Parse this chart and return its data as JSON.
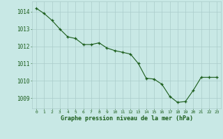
{
  "x": [
    0,
    1,
    2,
    3,
    4,
    5,
    6,
    7,
    8,
    9,
    10,
    11,
    12,
    13,
    14,
    15,
    16,
    17,
    18,
    19,
    20,
    21,
    22,
    23
  ],
  "y": [
    1014.2,
    1013.9,
    1013.5,
    1013.0,
    1012.55,
    1012.45,
    1012.1,
    1012.1,
    1012.2,
    1011.9,
    1011.75,
    1011.65,
    1011.55,
    1011.0,
    1010.15,
    1010.1,
    1009.8,
    1009.1,
    1008.75,
    1008.8,
    1009.45,
    1010.2,
    1010.2,
    1010.2
  ],
  "line_color": "#1a5c1a",
  "marker_color": "#1a5c1a",
  "bg_color": "#c8e8e5",
  "grid_color": "#aaccca",
  "xlabel": "Graphe pression niveau de la mer (hPa)",
  "xlabel_color": "#1a5c1a",
  "tick_color": "#1a5c1a",
  "ylim": [
    1008.4,
    1014.6
  ],
  "xlim": [
    -0.5,
    23.5
  ],
  "yticks": [
    1009,
    1010,
    1011,
    1012,
    1013,
    1014
  ],
  "xticks": [
    0,
    1,
    2,
    3,
    4,
    5,
    6,
    7,
    8,
    9,
    10,
    11,
    12,
    13,
    14,
    15,
    16,
    17,
    18,
    19,
    20,
    21,
    22,
    23
  ]
}
